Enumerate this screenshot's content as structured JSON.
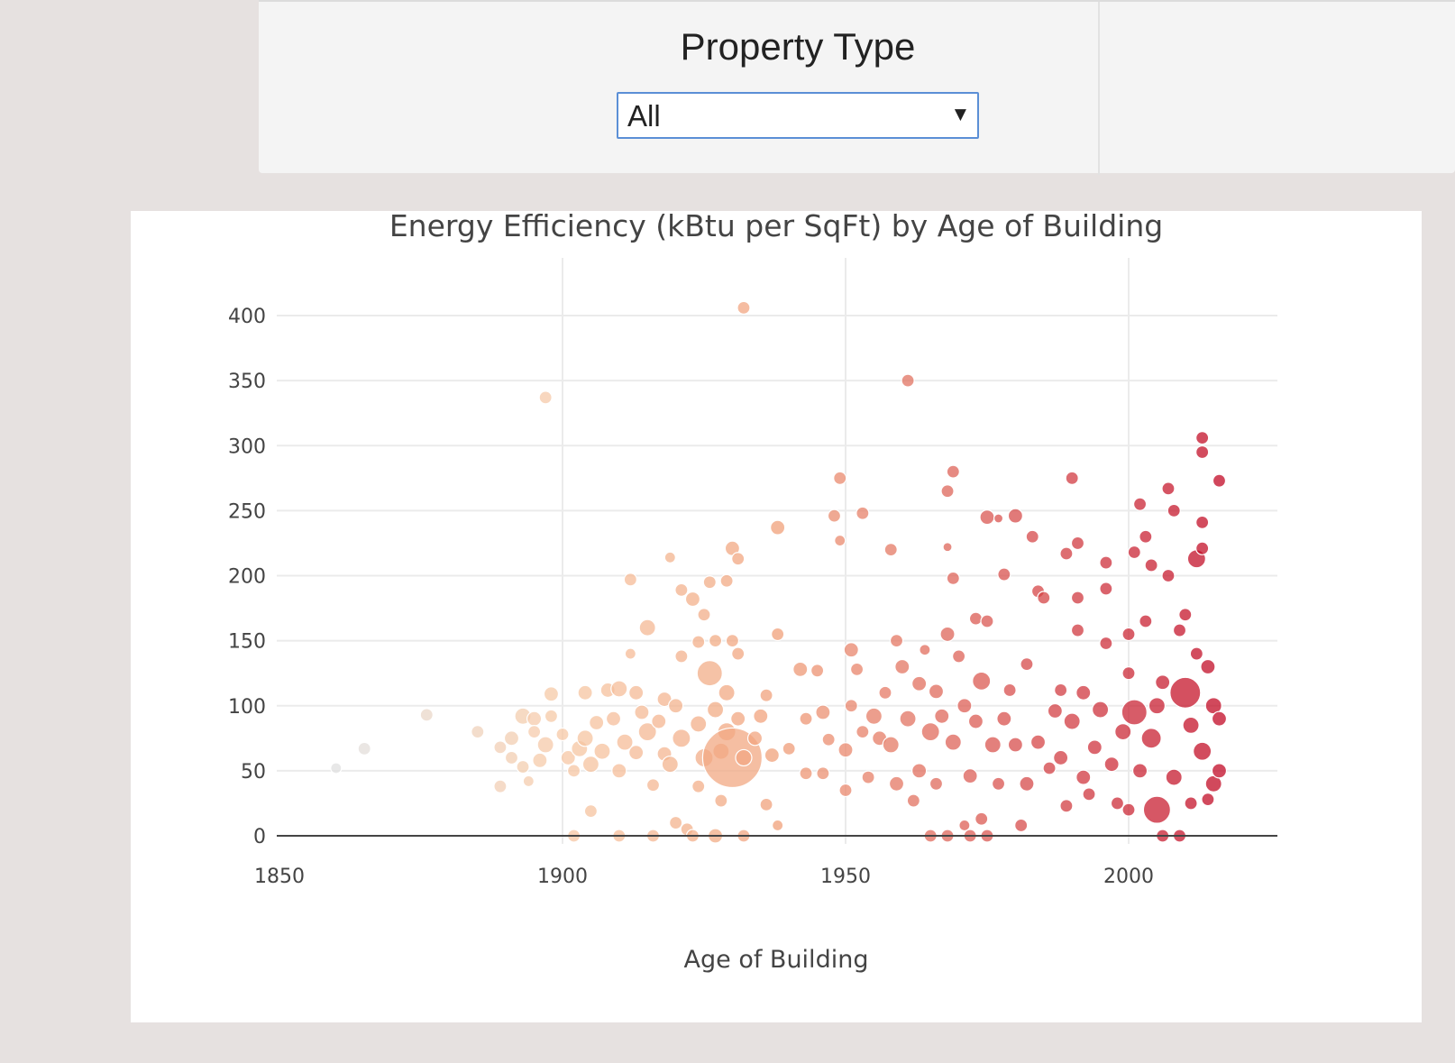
{
  "filter": {
    "title": "Property Type",
    "selected": "All"
  },
  "chart_data": {
    "type": "scatter",
    "title": "Energy Efficiency (kBtu per SqFt) by Age of Building",
    "xlabel": "Age of Building",
    "ylabel": "",
    "xlim": [
      1850,
      2027
    ],
    "ylim": [
      -30,
      440
    ],
    "xticks": [
      1850,
      1900,
      1950,
      2000
    ],
    "yticks": [
      0,
      50,
      100,
      150,
      200,
      250,
      300,
      350,
      400
    ],
    "grid": true,
    "color_scale": [
      "#e0e0e0",
      "#f7c9a6",
      "#f0a07a",
      "#d9534f",
      "#c10a25"
    ],
    "points": [
      [
        1860,
        52,
        6
      ],
      [
        1865,
        67,
        7
      ],
      [
        1876,
        93,
        7
      ],
      [
        1885,
        80,
        7
      ],
      [
        1889,
        38,
        7
      ],
      [
        1889,
        68,
        7
      ],
      [
        1891,
        75,
        8
      ],
      [
        1891,
        60,
        7
      ],
      [
        1893,
        92,
        9
      ],
      [
        1893,
        53,
        7
      ],
      [
        1894,
        42,
        6
      ],
      [
        1895,
        90,
        8
      ],
      [
        1895,
        80,
        7
      ],
      [
        1896,
        58,
        8
      ],
      [
        1897,
        337,
        7
      ],
      [
        1897,
        70,
        9
      ],
      [
        1898,
        109,
        8
      ],
      [
        1898,
        92,
        7
      ],
      [
        1900,
        78,
        7
      ],
      [
        1901,
        60,
        8
      ],
      [
        1902,
        0,
        7
      ],
      [
        1902,
        50,
        7
      ],
      [
        1903,
        67,
        9
      ],
      [
        1904,
        110,
        8
      ],
      [
        1904,
        75,
        9
      ],
      [
        1905,
        19,
        7
      ],
      [
        1905,
        55,
        9
      ],
      [
        1906,
        87,
        8
      ],
      [
        1907,
        65,
        9
      ],
      [
        1908,
        112,
        8
      ],
      [
        1909,
        90,
        8
      ],
      [
        1910,
        0,
        7
      ],
      [
        1910,
        50,
        8
      ],
      [
        1910,
        113,
        9
      ],
      [
        1911,
        72,
        9
      ],
      [
        1912,
        197,
        7
      ],
      [
        1912,
        140,
        6
      ],
      [
        1913,
        64,
        8
      ],
      [
        1913,
        110,
        8
      ],
      [
        1914,
        95,
        8
      ],
      [
        1915,
        160,
        9
      ],
      [
        1915,
        80,
        10
      ],
      [
        1916,
        0,
        7
      ],
      [
        1916,
        39,
        7
      ],
      [
        1917,
        88,
        8
      ],
      [
        1918,
        63,
        8
      ],
      [
        1918,
        105,
        8
      ],
      [
        1919,
        214,
        6
      ],
      [
        1919,
        55,
        9
      ],
      [
        1920,
        100,
        8
      ],
      [
        1920,
        10,
        7
      ],
      [
        1921,
        189,
        7
      ],
      [
        1921,
        138,
        7
      ],
      [
        1921,
        75,
        10
      ],
      [
        1922,
        5,
        7
      ],
      [
        1923,
        182,
        8
      ],
      [
        1923,
        0,
        7
      ],
      [
        1924,
        149,
        7
      ],
      [
        1924,
        86,
        9
      ],
      [
        1924,
        38,
        7
      ],
      [
        1925,
        60,
        10
      ],
      [
        1925,
        170,
        7
      ],
      [
        1926,
        125,
        14
      ],
      [
        1926,
        195,
        7
      ],
      [
        1927,
        0,
        8
      ],
      [
        1927,
        150,
        7
      ],
      [
        1927,
        97,
        9
      ],
      [
        1928,
        65,
        9
      ],
      [
        1928,
        27,
        7
      ],
      [
        1929,
        196,
        7
      ],
      [
        1929,
        80,
        10
      ],
      [
        1929,
        110,
        9
      ],
      [
        1930,
        60,
        33
      ],
      [
        1930,
        221,
        8
      ],
      [
        1930,
        150,
        7
      ],
      [
        1931,
        213,
        7
      ],
      [
        1931,
        140,
        7
      ],
      [
        1931,
        90,
        8
      ],
      [
        1932,
        406,
        7
      ],
      [
        1932,
        0,
        7
      ],
      [
        1932,
        60,
        9
      ],
      [
        1934,
        75,
        8
      ],
      [
        1935,
        92,
        8
      ],
      [
        1936,
        24,
        7
      ],
      [
        1936,
        108,
        7
      ],
      [
        1937,
        62,
        8
      ],
      [
        1938,
        155,
        7
      ],
      [
        1938,
        237,
        8
      ],
      [
        1938,
        8,
        6
      ],
      [
        1940,
        67,
        7
      ],
      [
        1942,
        128,
        8
      ],
      [
        1943,
        90,
        7
      ],
      [
        1943,
        48,
        7
      ],
      [
        1945,
        127,
        7
      ],
      [
        1946,
        95,
        8
      ],
      [
        1946,
        48,
        7
      ],
      [
        1947,
        74,
        7
      ],
      [
        1948,
        246,
        7
      ],
      [
        1949,
        275,
        7
      ],
      [
        1949,
        227,
        6
      ],
      [
        1950,
        35,
        7
      ],
      [
        1950,
        66,
        8
      ],
      [
        1951,
        143,
        8
      ],
      [
        1951,
        100,
        7
      ],
      [
        1952,
        128,
        7
      ],
      [
        1953,
        248,
        7
      ],
      [
        1953,
        80,
        7
      ],
      [
        1954,
        45,
        7
      ],
      [
        1955,
        92,
        9
      ],
      [
        1956,
        75,
        8
      ],
      [
        1957,
        110,
        7
      ],
      [
        1958,
        220,
        7
      ],
      [
        1958,
        70,
        9
      ],
      [
        1959,
        150,
        7
      ],
      [
        1959,
        40,
        8
      ],
      [
        1960,
        130,
        8
      ],
      [
        1961,
        350,
        7
      ],
      [
        1961,
        90,
        9
      ],
      [
        1962,
        27,
        7
      ],
      [
        1963,
        117,
        8
      ],
      [
        1963,
        50,
        8
      ],
      [
        1964,
        143,
        6
      ],
      [
        1965,
        0,
        7
      ],
      [
        1965,
        80,
        10
      ],
      [
        1966,
        111,
        8
      ],
      [
        1966,
        40,
        7
      ],
      [
        1967,
        92,
        8
      ],
      [
        1968,
        265,
        7
      ],
      [
        1968,
        222,
        5
      ],
      [
        1968,
        155,
        8
      ],
      [
        1968,
        0,
        7
      ],
      [
        1969,
        280,
        7
      ],
      [
        1969,
        198,
        7
      ],
      [
        1969,
        72,
        9
      ],
      [
        1970,
        138,
        7
      ],
      [
        1971,
        8,
        6
      ],
      [
        1971,
        100,
        8
      ],
      [
        1972,
        0,
        7
      ],
      [
        1972,
        46,
        8
      ],
      [
        1973,
        167,
        7
      ],
      [
        1973,
        88,
        8
      ],
      [
        1974,
        119,
        10
      ],
      [
        1974,
        13,
        7
      ],
      [
        1975,
        245,
        8
      ],
      [
        1975,
        165,
        7
      ],
      [
        1975,
        0,
        7
      ],
      [
        1976,
        70,
        9
      ],
      [
        1977,
        244,
        5
      ],
      [
        1977,
        40,
        7
      ],
      [
        1978,
        90,
        8
      ],
      [
        1978,
        201,
        7
      ],
      [
        1979,
        112,
        7
      ],
      [
        1980,
        246,
        8
      ],
      [
        1980,
        70,
        8
      ],
      [
        1981,
        8,
        7
      ],
      [
        1982,
        132,
        7
      ],
      [
        1982,
        40,
        8
      ],
      [
        1983,
        230,
        7
      ],
      [
        1984,
        188,
        7
      ],
      [
        1984,
        72,
        8
      ],
      [
        1985,
        183,
        7
      ],
      [
        1986,
        52,
        7
      ],
      [
        1987,
        96,
        8
      ],
      [
        1988,
        112,
        7
      ],
      [
        1988,
        60,
        8
      ],
      [
        1989,
        217,
        7
      ],
      [
        1989,
        23,
        7
      ],
      [
        1990,
        275,
        7
      ],
      [
        1990,
        88,
        9
      ],
      [
        1991,
        225,
        7
      ],
      [
        1991,
        183,
        7
      ],
      [
        1991,
        158,
        7
      ],
      [
        1992,
        110,
        8
      ],
      [
        1992,
        45,
        8
      ],
      [
        1993,
        32,
        7
      ],
      [
        1994,
        68,
        8
      ],
      [
        1995,
        97,
        9
      ],
      [
        1996,
        210,
        7
      ],
      [
        1996,
        190,
        7
      ],
      [
        1996,
        148,
        7
      ],
      [
        1997,
        55,
        8
      ],
      [
        1998,
        25,
        7
      ],
      [
        1999,
        80,
        9
      ],
      [
        2000,
        155,
        7
      ],
      [
        2000,
        125,
        7
      ],
      [
        2000,
        20,
        7
      ],
      [
        2001,
        218,
        7
      ],
      [
        2001,
        95,
        14
      ],
      [
        2002,
        255,
        7
      ],
      [
        2002,
        50,
        8
      ],
      [
        2003,
        230,
        7
      ],
      [
        2003,
        165,
        7
      ],
      [
        2004,
        208,
        7
      ],
      [
        2004,
        75,
        11
      ],
      [
        2005,
        20,
        15
      ],
      [
        2005,
        100,
        9
      ],
      [
        2006,
        0,
        7
      ],
      [
        2006,
        118,
        8
      ],
      [
        2007,
        267,
        7
      ],
      [
        2007,
        200,
        7
      ],
      [
        2008,
        250,
        7
      ],
      [
        2008,
        45,
        9
      ],
      [
        2009,
        158,
        7
      ],
      [
        2009,
        0,
        7
      ],
      [
        2010,
        110,
        17
      ],
      [
        2010,
        170,
        7
      ],
      [
        2011,
        25,
        7
      ],
      [
        2011,
        85,
        9
      ],
      [
        2012,
        213,
        10
      ],
      [
        2012,
        140,
        7
      ],
      [
        2013,
        306,
        7
      ],
      [
        2013,
        295,
        7
      ],
      [
        2013,
        241,
        7
      ],
      [
        2013,
        221,
        7
      ],
      [
        2013,
        65,
        10
      ],
      [
        2014,
        130,
        8
      ],
      [
        2014,
        28,
        7
      ],
      [
        2015,
        100,
        9
      ],
      [
        2015,
        40,
        9
      ],
      [
        2016,
        273,
        7
      ],
      [
        2016,
        90,
        8
      ],
      [
        2016,
        50,
        8
      ]
    ]
  }
}
